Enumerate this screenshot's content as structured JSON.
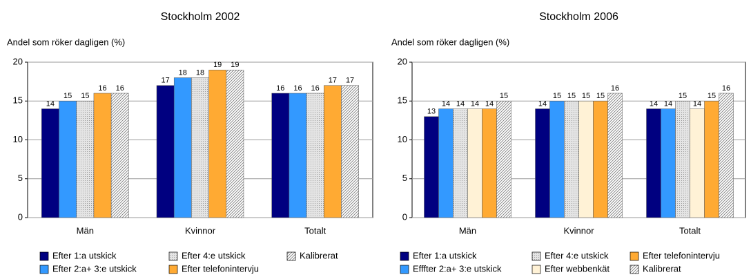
{
  "chart_data": [
    {
      "type": "bar",
      "title": "Stockholm 2002",
      "y_label": "Andel som röker dagligen (%)",
      "categories": [
        "Män",
        "Kvinnor",
        "Totalt"
      ],
      "series": [
        {
          "name": "Efter 1:a utskick",
          "color": "#000080",
          "values": [
            14,
            17,
            16
          ]
        },
        {
          "name": "Efter 2:a+ 3:e utskick",
          "color": "#3399ff",
          "values": [
            15,
            18,
            16
          ]
        },
        {
          "name": "Efter 4:e utskick",
          "color": "#e4e4e4",
          "pattern": "dots",
          "values": [
            15,
            18,
            16
          ]
        },
        {
          "name": "Efter telefonintervju",
          "color": "#ffaa33",
          "values": [
            16,
            19,
            17
          ]
        },
        {
          "name": "Kalibrerat",
          "color": "#ffffff",
          "pattern": "hatch",
          "values": [
            16,
            19,
            17
          ]
        }
      ],
      "ylim": [
        0,
        20
      ],
      "yticks": [
        0,
        5,
        10,
        15,
        20
      ],
      "grid": true
    },
    {
      "type": "bar",
      "title": "Stockholm 2006",
      "y_label": "Andel som röker dagligen (%)",
      "categories": [
        "Män",
        "Kvinnor",
        "Totalt"
      ],
      "series": [
        {
          "name": "Efter 1:a utskick",
          "color": "#000080",
          "values": [
            13,
            14,
            14
          ]
        },
        {
          "name": "Efffter 2:a+ 3:e utskick",
          "color": "#3399ff",
          "values": [
            14,
            15,
            14
          ]
        },
        {
          "name": "Efter 4:e utskick",
          "color": "#e4e4e4",
          "pattern": "dots",
          "values": [
            14,
            15,
            15
          ]
        },
        {
          "name": "Efter webbenkät",
          "color": "#fff2d6",
          "values": [
            14,
            15,
            14
          ]
        },
        {
          "name": "Efter telefonintervju",
          "color": "#ffaa33",
          "values": [
            14,
            15,
            15
          ]
        },
        {
          "name": "Kalibrerat",
          "color": "#ffffff",
          "pattern": "hatch",
          "values": [
            15,
            16,
            16
          ]
        }
      ],
      "ylim": [
        0,
        20
      ],
      "yticks": [
        0,
        5,
        10,
        15,
        20
      ],
      "grid": true
    }
  ]
}
